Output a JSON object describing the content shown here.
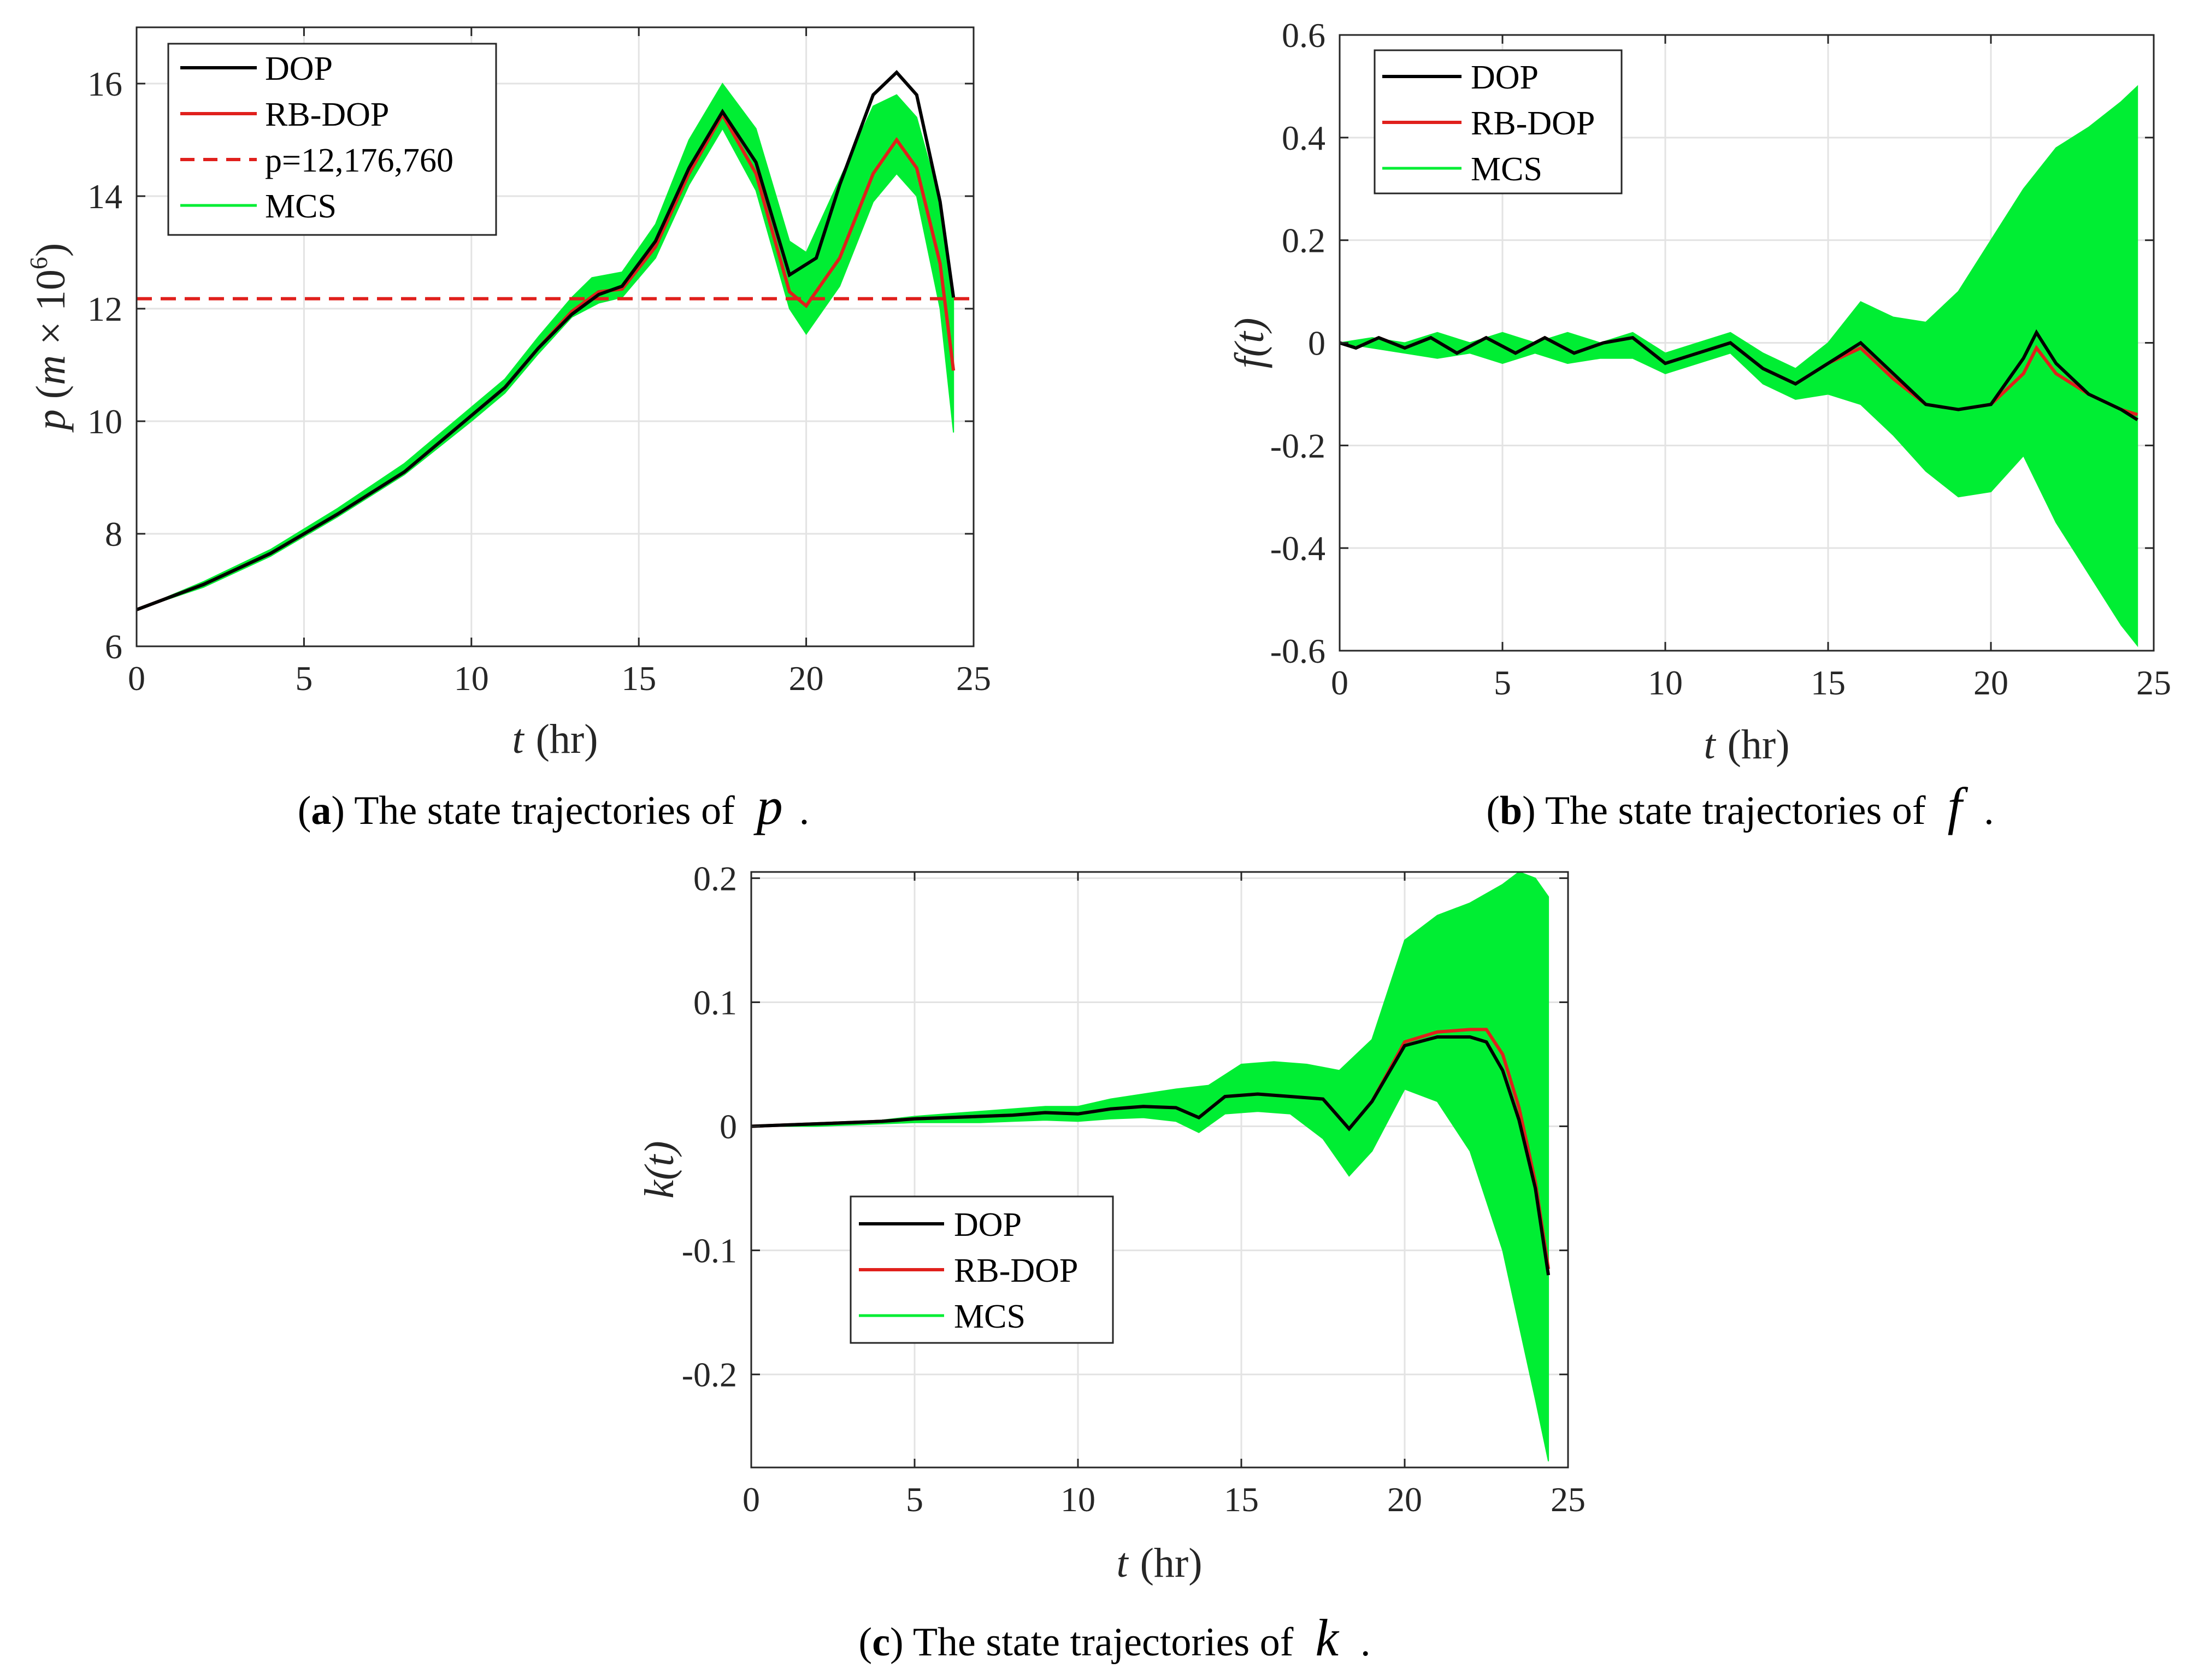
{
  "figure": {
    "colors": {
      "dop": "#000000",
      "rbdop": "#e0201c",
      "mcs": "#00ee33",
      "grid": "#e3e3e3",
      "axis": "#262626"
    }
  },
  "chart_data": [
    {
      "id": "a",
      "type": "line",
      "title": "",
      "xlabel_var": "t",
      "xlabel_unit": "(hr)",
      "ylabel": "p (m × 10⁶)",
      "xlim": [
        0,
        25
      ],
      "ylim": [
        6,
        17
      ],
      "xticks": [
        0,
        5,
        10,
        15,
        20,
        25
      ],
      "yticks": [
        6,
        8,
        10,
        12,
        14,
        16
      ],
      "ytick_labels": [
        "6",
        "8",
        "10",
        "12",
        "14",
        "16"
      ],
      "legend_position": "top-left",
      "legend": [
        "DOP",
        "RB-DOP",
        "p=12,176,760",
        "MCS"
      ],
      "reference_line": {
        "name": "p=12,176,760",
        "y": 12.17676
      },
      "caption": {
        "letter": "a",
        "text": "The state trajectories of",
        "var": "p"
      },
      "series": [
        {
          "name": "DOP",
          "x": [
            0,
            2,
            4,
            6,
            8,
            10,
            11,
            12,
            13,
            13.8,
            14.5,
            15.5,
            16.5,
            17.5,
            18.5,
            19.5,
            20.3,
            21,
            22,
            22.7,
            23.3,
            24,
            24.4
          ],
          "y": [
            6.65,
            7.1,
            7.65,
            8.35,
            9.1,
            10.1,
            10.6,
            11.3,
            11.9,
            12.25,
            12.4,
            13.2,
            14.5,
            15.5,
            14.6,
            12.6,
            12.9,
            14.2,
            15.8,
            16.2,
            15.8,
            13.9,
            12.2
          ]
        },
        {
          "name": "RB-DOP",
          "x": [
            0,
            2,
            4,
            6,
            8,
            10,
            11,
            12,
            13,
            13.8,
            14.5,
            15.5,
            16.5,
            17.5,
            18.5,
            19.5,
            20,
            21,
            22,
            22.7,
            23.3,
            24,
            24.4
          ],
          "y": [
            6.65,
            7.1,
            7.65,
            8.35,
            9.1,
            10.1,
            10.6,
            11.3,
            11.95,
            12.3,
            12.35,
            13.1,
            14.4,
            15.45,
            14.4,
            12.3,
            12.05,
            12.9,
            14.4,
            15.0,
            14.5,
            12.8,
            10.9
          ]
        },
        {
          "name": "MCS_upper",
          "x": [
            0,
            2,
            4,
            6,
            8,
            10,
            11,
            12,
            13,
            13.6,
            14.5,
            15.5,
            16.5,
            17.5,
            18.5,
            19.5,
            20,
            21,
            22,
            22.7,
            23.3,
            24,
            24.4
          ],
          "y": [
            6.65,
            7.15,
            7.72,
            8.45,
            9.25,
            10.25,
            10.75,
            11.5,
            12.2,
            12.55,
            12.65,
            13.5,
            15.0,
            16.0,
            15.2,
            13.2,
            13.0,
            14.3,
            15.6,
            15.8,
            15.4,
            13.9,
            12.3
          ]
        },
        {
          "name": "MCS_lower",
          "x": [
            0,
            2,
            4,
            6,
            8,
            10,
            11,
            12,
            13,
            13.8,
            14.5,
            15.5,
            16.5,
            17.5,
            18.5,
            19.5,
            20,
            21,
            22,
            22.7,
            23.3,
            24,
            24.4
          ],
          "y": [
            6.65,
            7.05,
            7.6,
            8.3,
            9.05,
            10.0,
            10.5,
            11.2,
            11.85,
            12.1,
            12.2,
            12.9,
            14.2,
            15.2,
            14.1,
            12.0,
            11.55,
            12.4,
            13.9,
            14.4,
            14.0,
            12.0,
            9.8
          ]
        }
      ]
    },
    {
      "id": "b",
      "type": "line",
      "title": "",
      "xlabel_var": "t",
      "xlabel_unit": "(hr)",
      "ylabel": "f(t)",
      "xlim": [
        0,
        25
      ],
      "ylim": [
        -0.6,
        0.6
      ],
      "xticks": [
        0,
        5,
        10,
        15,
        20,
        25
      ],
      "yticks": [
        -0.6,
        -0.4,
        -0.2,
        0,
        0.2,
        0.4,
        0.6
      ],
      "ytick_labels": [
        "-0.6",
        "-0.4",
        "-0.2",
        "0",
        "0.2",
        "0.4",
        "0.6"
      ],
      "legend_position": "top-left",
      "legend": [
        "DOP",
        "RB-DOP",
        "MCS"
      ],
      "caption": {
        "letter": "b",
        "text": "The state trajectories of",
        "var": "f"
      },
      "series": [
        {
          "name": "DOP",
          "x": [
            0,
            0.5,
            1.2,
            2,
            2.8,
            3.6,
            4.5,
            5.4,
            6.3,
            7.2,
            8.1,
            9,
            10,
            11,
            12,
            13,
            14,
            15,
            16,
            17,
            18,
            19,
            20,
            21,
            21.4,
            22,
            23,
            24,
            24.5
          ],
          "y": [
            0,
            -0.01,
            0.01,
            -0.01,
            0.01,
            -0.02,
            0.01,
            -0.02,
            0.01,
            -0.02,
            0.0,
            0.01,
            -0.04,
            -0.02,
            0.0,
            -0.05,
            -0.08,
            -0.04,
            0.0,
            -0.06,
            -0.12,
            -0.13,
            -0.12,
            -0.03,
            0.02,
            -0.04,
            -0.1,
            -0.13,
            -0.15
          ]
        },
        {
          "name": "RB-DOP",
          "x": [
            0,
            0.5,
            1.2,
            2,
            2.8,
            3.6,
            4.5,
            5.4,
            6.3,
            7.2,
            8.1,
            9,
            10,
            11,
            12,
            13,
            14,
            15,
            16,
            17,
            18,
            19,
            20,
            21,
            21.4,
            22,
            23,
            24,
            24.5
          ],
          "y": [
            0,
            -0.01,
            0.01,
            -0.01,
            0.01,
            -0.02,
            0.01,
            -0.02,
            0.01,
            -0.02,
            0.0,
            0.01,
            -0.04,
            -0.02,
            0.0,
            -0.05,
            -0.08,
            -0.04,
            -0.01,
            -0.07,
            -0.12,
            -0.13,
            -0.12,
            -0.06,
            -0.01,
            -0.06,
            -0.1,
            -0.13,
            -0.14
          ]
        },
        {
          "name": "MCS_upper",
          "x": [
            0,
            1,
            2,
            3,
            4,
            5,
            6,
            7,
            8,
            9,
            10,
            11,
            12,
            13,
            14,
            15,
            16,
            17,
            18,
            19,
            20,
            21,
            22,
            23,
            24,
            24.5
          ],
          "y": [
            0,
            0.01,
            0.0,
            0.02,
            0.0,
            0.02,
            0.0,
            0.02,
            0.0,
            0.02,
            -0.02,
            0.0,
            0.02,
            -0.02,
            -0.05,
            0.0,
            0.08,
            0.05,
            0.04,
            0.1,
            0.2,
            0.3,
            0.38,
            0.42,
            0.47,
            0.5
          ]
        },
        {
          "name": "MCS_lower",
          "x": [
            0,
            1,
            2,
            3,
            4,
            5,
            6,
            7,
            8,
            9,
            10,
            11,
            12,
            13,
            14,
            15,
            16,
            17,
            18,
            19,
            20,
            21,
            22,
            23,
            24,
            24.5
          ],
          "y": [
            0,
            -0.01,
            -0.02,
            -0.03,
            -0.02,
            -0.04,
            -0.02,
            -0.04,
            -0.03,
            -0.03,
            -0.06,
            -0.04,
            -0.02,
            -0.08,
            -0.11,
            -0.1,
            -0.12,
            -0.18,
            -0.25,
            -0.3,
            -0.29,
            -0.22,
            -0.35,
            -0.45,
            -0.55,
            -0.59
          ]
        }
      ]
    },
    {
      "id": "c",
      "type": "line",
      "title": "",
      "xlabel_var": "t",
      "xlabel_unit": "(hr)",
      "ylabel": "k(t)",
      "xlim": [
        0,
        25
      ],
      "ylim": [
        -0.275,
        0.205
      ],
      "xticks": [
        0,
        5,
        10,
        15,
        20,
        25
      ],
      "yticks": [
        -0.2,
        -0.1,
        0,
        0.1,
        0.2
      ],
      "ytick_labels": [
        "-0.2",
        "-0.1",
        "0",
        "0.1",
        "0.2"
      ],
      "legend_position": "lower-left",
      "legend": [
        "DOP",
        "RB-DOP",
        "MCS"
      ],
      "caption": {
        "letter": "c",
        "text": "The state trajectories of",
        "var": "k"
      },
      "series": [
        {
          "name": "DOP",
          "x": [
            0,
            2,
            4,
            5,
            6,
            7,
            8,
            9,
            10,
            11,
            12,
            13,
            13.7,
            14.5,
            15.5,
            16.5,
            17.5,
            18.3,
            19,
            20,
            21,
            22,
            22.5,
            23,
            23.5,
            24,
            24.4
          ],
          "y": [
            0,
            0.002,
            0.004,
            0.006,
            0.007,
            0.008,
            0.009,
            0.011,
            0.01,
            0.014,
            0.016,
            0.015,
            0.007,
            0.024,
            0.026,
            0.024,
            0.022,
            -0.002,
            0.02,
            0.065,
            0.072,
            0.072,
            0.068,
            0.045,
            0.005,
            -0.05,
            -0.12
          ]
        },
        {
          "name": "RB-DOP",
          "x": [
            0,
            2,
            4,
            5,
            6,
            7,
            8,
            9,
            10,
            11,
            12,
            13,
            13.7,
            14.5,
            15.5,
            16.5,
            17.5,
            18.3,
            19,
            20,
            21,
            22,
            22.5,
            23,
            23.5,
            24,
            24.4
          ],
          "y": [
            0,
            0.002,
            0.004,
            0.006,
            0.007,
            0.008,
            0.009,
            0.011,
            0.01,
            0.014,
            0.016,
            0.015,
            0.007,
            0.024,
            0.026,
            0.024,
            0.022,
            -0.002,
            0.02,
            0.068,
            0.076,
            0.078,
            0.078,
            0.058,
            0.015,
            -0.045,
            -0.115
          ]
        },
        {
          "name": "MCS_upper",
          "x": [
            0,
            2,
            4,
            5,
            6,
            7,
            8,
            9,
            10,
            11,
            12,
            13,
            14,
            15,
            16,
            17,
            18,
            19,
            20,
            21,
            22,
            23,
            23.5,
            24,
            24.4
          ],
          "y": [
            0,
            0.002,
            0.005,
            0.008,
            0.01,
            0.012,
            0.014,
            0.016,
            0.016,
            0.022,
            0.026,
            0.03,
            0.033,
            0.05,
            0.052,
            0.05,
            0.045,
            0.07,
            0.15,
            0.17,
            0.18,
            0.195,
            0.205,
            0.2,
            0.185
          ]
        },
        {
          "name": "MCS_lower",
          "x": [
            0,
            2,
            4,
            5,
            6,
            7,
            8,
            9,
            10,
            11,
            12,
            13,
            13.7,
            14.5,
            15.5,
            16.5,
            17.5,
            18.3,
            19,
            20,
            21,
            22,
            23,
            23.5,
            24,
            24.4
          ],
          "y": [
            0,
            0.0,
            0.002,
            0.003,
            0.003,
            0.003,
            0.004,
            0.005,
            0.004,
            0.006,
            0.007,
            0.004,
            -0.005,
            0.01,
            0.012,
            0.01,
            -0.01,
            -0.04,
            -0.02,
            0.03,
            0.02,
            -0.02,
            -0.1,
            -0.16,
            -0.22,
            -0.27
          ]
        }
      ]
    }
  ]
}
